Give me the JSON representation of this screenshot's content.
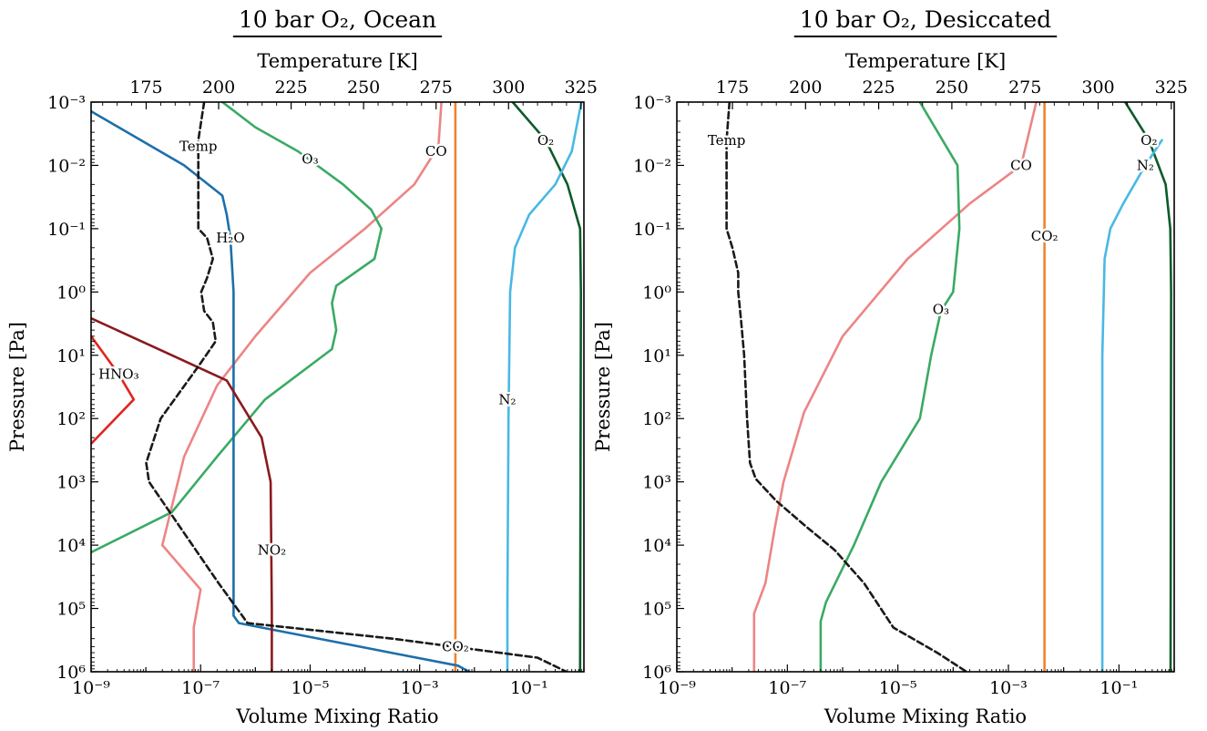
{
  "chart_data": [
    {
      "type": "line",
      "title": "10 bar O₂, Ocean",
      "xlabel": "Volume Mixing Ratio",
      "ylabel": "Pressure [Pa]",
      "x2label": "Temperature [K]",
      "xscale": "log",
      "yscale": "log",
      "y_inverted": true,
      "xlim": [
        1e-09,
        1
      ],
      "ylim": [
        0.001,
        1000000
      ],
      "t_lim": [
        156,
        326
      ],
      "xticks": [
        "10⁻⁹",
        "10⁻⁷",
        "10⁻⁵",
        "10⁻³",
        "10⁻¹"
      ],
      "yticks": [
        "10⁻³",
        "10⁻²",
        "10⁻¹",
        "10⁰",
        "10¹",
        "10²",
        "10³",
        "10⁴",
        "10⁵",
        "10⁶"
      ],
      "tticks": [
        "175",
        "200",
        "225",
        "250",
        "275",
        "300",
        "325"
      ],
      "series": [
        {
          "name": "O₂",
          "color": "#0c5a2a",
          "label_at": [
            0.2,
            0.004
          ],
          "points": [
            [
              0.05,
              0.001
            ],
            [
              0.2,
              0.004
            ],
            [
              0.5,
              0.02
            ],
            [
              0.85,
              0.1
            ],
            [
              0.88,
              1
            ],
            [
              0.85,
              1000000
            ]
          ]
        },
        {
          "name": "N₂",
          "color": "#4ab8e4",
          "label_at": [
            0.04,
            50
          ],
          "points": [
            [
              0.9,
              0.001
            ],
            [
              0.6,
              0.006
            ],
            [
              0.3,
              0.02
            ],
            [
              0.1,
              0.06
            ],
            [
              0.055,
              0.2
            ],
            [
              0.045,
              1
            ],
            [
              0.042,
              100
            ],
            [
              0.04,
              100000
            ],
            [
              0.04,
              1000000
            ]
          ]
        },
        {
          "name": "CO₂",
          "color": "#f0832e",
          "label_at": [
            0.0045,
            400000
          ],
          "points": [
            [
              0.0045,
              0.001
            ],
            [
              0.0045,
              1000000
            ]
          ]
        },
        {
          "name": "CO",
          "color": "#ec8585",
          "label_at": [
            0.002,
            0.006
          ],
          "points": [
            [
              0.0025,
              0.001
            ],
            [
              0.0022,
              0.005
            ],
            [
              0.0008,
              0.02
            ],
            [
              0.0001,
              0.1
            ],
            [
              1e-05,
              0.5
            ],
            [
              1e-06,
              5
            ],
            [
              2e-07,
              30
            ],
            [
              5e-08,
              400
            ],
            [
              2e-08,
              10000
            ],
            [
              1e-07,
              50000
            ],
            [
              7.5e-08,
              200000
            ],
            [
              7.5e-08,
              1000000
            ]
          ]
        },
        {
          "name": "O₃",
          "color": "#3aaa64",
          "label_at": [
            1e-05,
            0.008
          ],
          "points": [
            [
              2.5e-07,
              0.001
            ],
            [
              1e-06,
              0.0025
            ],
            [
              6e-06,
              0.006
            ],
            [
              4e-05,
              0.02
            ],
            [
              0.00013,
              0.05
            ],
            [
              0.0002,
              0.1
            ],
            [
              0.00015,
              0.3
            ],
            [
              3e-05,
              0.8
            ],
            [
              2.5e-05,
              1.5
            ],
            [
              3e-05,
              4
            ],
            [
              2.5e-05,
              8
            ],
            [
              1.5e-06,
              50
            ],
            [
              2e-07,
              400
            ],
            [
              3e-08,
              3000
            ],
            [
              1e-09,
              13000
            ]
          ]
        },
        {
          "name": "H₂O",
          "color": "#1d6faa",
          "label_at": [
            3.5e-07,
            0.14
          ],
          "points": [
            [
              1e-09,
              0.0014
            ],
            [
              5e-08,
              0.01
            ],
            [
              2.5e-07,
              0.03
            ],
            [
              3e-07,
              0.06
            ],
            [
              3.5e-07,
              0.14
            ],
            [
              4e-07,
              1
            ],
            [
              4e-07,
              100
            ],
            [
              4e-07,
              130000
            ],
            [
              5e-07,
              170000
            ],
            [
              1.3e-06,
              200000
            ],
            [
              0.0003,
              500000
            ],
            [
              0.005,
              800000
            ],
            [
              0.008,
              1000000
            ]
          ]
        },
        {
          "name": "NO₂",
          "color": "#8a1a1e",
          "label_at": [
            2e-06,
            12000
          ],
          "points": [
            [
              1e-09,
              2.6
            ],
            [
              3e-08,
              10
            ],
            [
              3e-07,
              25
            ],
            [
              1.3e-06,
              200
            ],
            [
              1.9e-06,
              1000
            ],
            [
              2e-06,
              100000
            ],
            [
              2e-06,
              1000000
            ]
          ]
        },
        {
          "name": "HNO₃",
          "color": "#e02520",
          "label_at": [
            3.2e-09,
            20
          ],
          "points": [
            [
              1e-09,
              5
            ],
            [
              3.2e-09,
              20
            ],
            [
              6e-09,
              50
            ],
            [
              1e-09,
              250
            ]
          ]
        },
        {
          "name": "Temp",
          "color": "#1a1a1a",
          "dashed": true,
          "temp": true,
          "label_at": [
            193,
            0.005
          ],
          "points": [
            [
              195,
              0.001
            ],
            [
              193,
              0.004
            ],
            [
              193,
              0.1
            ],
            [
              196,
              0.14
            ],
            [
              198,
              0.3
            ],
            [
              196,
              0.6
            ],
            [
              194,
              1
            ],
            [
              195,
              2
            ],
            [
              198,
              3
            ],
            [
              199,
              6
            ],
            [
              193,
              15
            ],
            [
              180,
              100
            ],
            [
              175,
              500
            ],
            [
              176,
              1000
            ],
            [
              185,
              4000
            ],
            [
              200,
              40000
            ],
            [
              210,
              170000
            ],
            [
              260,
              300000
            ],
            [
              310,
              600000
            ],
            [
              320,
              1000000
            ]
          ]
        }
      ]
    },
    {
      "type": "line",
      "title": "10 bar O₂, Desiccated",
      "xlabel": "Volume Mixing Ratio",
      "ylabel": "Pressure [Pa]",
      "x2label": "Temperature [K]",
      "xscale": "log",
      "yscale": "log",
      "y_inverted": true,
      "xlim": [
        1e-09,
        1
      ],
      "ylim": [
        0.001,
        1000000
      ],
      "t_lim": [
        156,
        326
      ],
      "xticks": [
        "10⁻⁹",
        "10⁻⁷",
        "10⁻⁵",
        "10⁻³",
        "10⁻¹"
      ],
      "yticks": [
        "10⁻³",
        "10⁻²",
        "10⁻¹",
        "10⁰",
        "10¹",
        "10²",
        "10³",
        "10⁴",
        "10⁵",
        "10⁶"
      ],
      "tticks": [
        "175",
        "200",
        "225",
        "250",
        "275",
        "300",
        "325"
      ],
      "series": [
        {
          "name": "O₂",
          "color": "#0c5a2a",
          "label_at": [
            0.35,
            0.004
          ],
          "points": [
            [
              0.13,
              0.001
            ],
            [
              0.35,
              0.004
            ],
            [
              0.7,
              0.02
            ],
            [
              0.85,
              0.1
            ],
            [
              0.88,
              1
            ],
            [
              0.86,
              1000000
            ]
          ]
        },
        {
          "name": "N₂",
          "color": "#4ab8e4",
          "label_at": [
            0.3,
            0.01
          ],
          "points": [
            [
              0.6,
              0.004
            ],
            [
              0.3,
              0.01
            ],
            [
              0.12,
              0.04
            ],
            [
              0.07,
              0.1
            ],
            [
              0.055,
              0.3
            ],
            [
              0.05,
              10
            ],
            [
              0.05,
              1000000
            ]
          ]
        },
        {
          "name": "CO₂",
          "color": "#f0832e",
          "label_at": [
            0.0045,
            0.13
          ],
          "points": [
            [
              0.0045,
              0.001
            ],
            [
              0.0045,
              1000000
            ]
          ]
        },
        {
          "name": "CO",
          "color": "#ec8585",
          "label_at": [
            0.0017,
            0.01
          ],
          "points": [
            [
              0.0032,
              0.001
            ],
            [
              0.0017,
              0.01
            ],
            [
              0.0002,
              0.04
            ],
            [
              1.5e-05,
              0.3
            ],
            [
              1e-06,
              5
            ],
            [
              2e-07,
              80
            ],
            [
              8.5e-08,
              1000
            ],
            [
              6e-08,
              5000
            ],
            [
              4e-08,
              40000
            ],
            [
              2.5e-08,
              120000
            ],
            [
              2.5e-08,
              1000000
            ]
          ]
        },
        {
          "name": "O₃",
          "color": "#3aaa64",
          "label_at": [
            6e-05,
            1.9
          ],
          "points": [
            [
              2.5e-05,
              0.001
            ],
            [
              0.00012,
              0.01
            ],
            [
              0.00013,
              0.1
            ],
            [
              0.0001,
              1
            ],
            [
              6e-05,
              2
            ],
            [
              4e-05,
              10
            ],
            [
              2.5e-05,
              100
            ],
            [
              5e-06,
              1000
            ],
            [
              1.6e-06,
              10000
            ],
            [
              5e-07,
              80000
            ],
            [
              4e-07,
              160000
            ],
            [
              4e-07,
              1000000
            ]
          ]
        },
        {
          "name": "Temp",
          "color": "#1a1a1a",
          "dashed": true,
          "temp": true,
          "label_at": [
            173,
            0.004
          ],
          "points": [
            [
              174,
              0.001
            ],
            [
              173,
              0.004
            ],
            [
              173,
              0.1
            ],
            [
              175,
              0.2
            ],
            [
              177,
              0.5
            ],
            [
              177,
              1
            ],
            [
              178,
              3
            ],
            [
              179,
              10
            ],
            [
              180,
              100
            ],
            [
              181,
              500
            ],
            [
              183,
              900
            ],
            [
              190,
              2000
            ],
            [
              200,
              5000
            ],
            [
              210,
              12000
            ],
            [
              220,
              40000
            ],
            [
              230,
              200000
            ],
            [
              245,
              500000
            ],
            [
              255,
              1000000
            ]
          ]
        }
      ]
    }
  ]
}
